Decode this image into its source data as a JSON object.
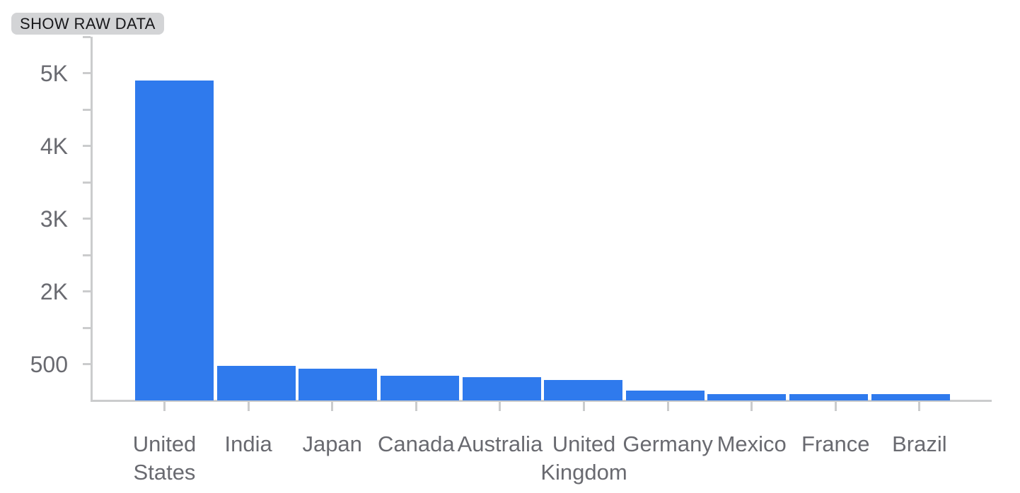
{
  "toolbar": {
    "show_raw_data_label": "SHOW RAW DATA"
  },
  "chart_data": {
    "type": "bar",
    "title": "",
    "xlabel": "",
    "ylabel": "",
    "categories": [
      "United States",
      "India",
      "Japan",
      "Canada",
      "Australia",
      "United Kingdom",
      "Germany",
      "Mexico",
      "France",
      "Brazil"
    ],
    "values": [
      4400,
      480,
      440,
      345,
      320,
      285,
      140,
      90,
      90,
      85
    ],
    "y_axis": {
      "tick_labels": [
        "500",
        "2K",
        "3K",
        "4K",
        "5K"
      ],
      "labeled_tick_steps": [
        1,
        3,
        5,
        7,
        9
      ],
      "total_tick_steps": 10,
      "units_per_step": 500,
      "ylim": [
        0,
        5150
      ]
    },
    "grid": false,
    "legend": null,
    "colors": {
      "bar": "#2F7AED",
      "axis": "#cbcccd",
      "labels": "#696a70",
      "chip_background": "#d3d4d6",
      "chip_text": "#18181b"
    }
  }
}
